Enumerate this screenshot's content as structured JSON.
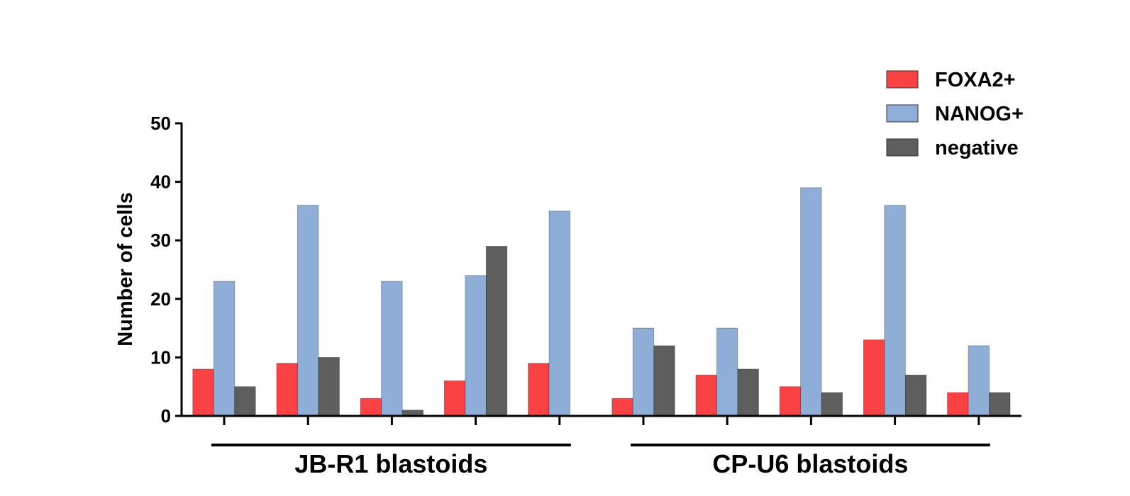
{
  "chart_data": {
    "type": "bar",
    "title": "",
    "xlabel": "",
    "ylabel": "Number of cells",
    "ylim": [
      0,
      50
    ],
    "yticks": [
      0,
      10,
      20,
      30,
      40,
      50
    ],
    "grid": false,
    "legend_position": "top-right",
    "categories": [
      "",
      "",
      "",
      "",
      "",
      "",
      "",
      "",
      "",
      ""
    ],
    "groups": [
      {
        "label": "JB-R1 blastoids",
        "start": 0,
        "end": 4
      },
      {
        "label": "CP-U6 blastoids",
        "start": 5,
        "end": 9
      }
    ],
    "series": [
      {
        "name": "FOXA2+",
        "color": "#fa4245",
        "values": [
          8,
          9,
          3,
          6,
          9,
          3,
          7,
          5,
          13,
          4
        ]
      },
      {
        "name": "NANOG+",
        "color": "#8eaed8",
        "values": [
          23,
          36,
          23,
          24,
          35,
          15,
          15,
          39,
          36,
          12
        ]
      },
      {
        "name": "negative",
        "color": "#5e5e5e",
        "values": [
          5,
          10,
          1,
          29,
          0,
          12,
          8,
          4,
          7,
          4
        ]
      }
    ]
  }
}
